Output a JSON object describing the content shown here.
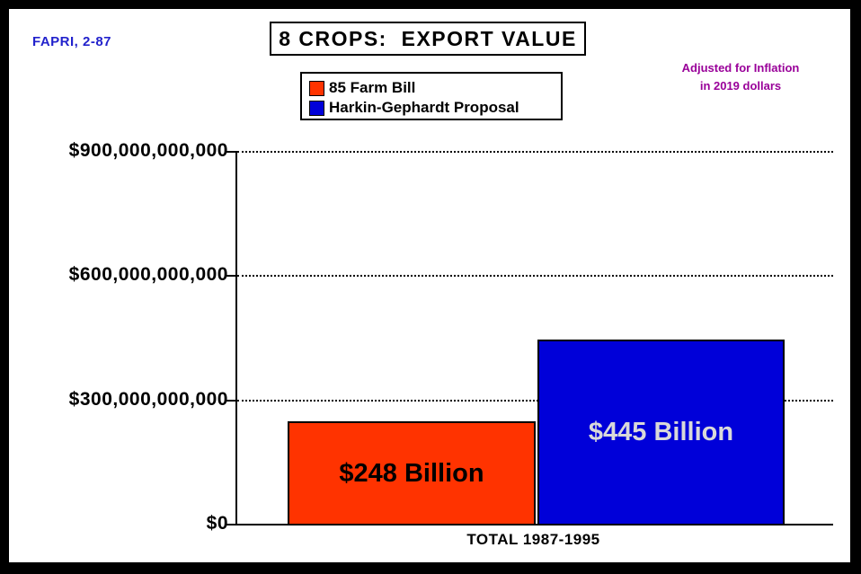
{
  "header": {
    "source_label": "FAPRI, 2-87",
    "title": "8 CROPS:  EXPORT VALUE",
    "annotation_line1": "Adjusted for Inflation",
    "annotation_line2": "in 2019 dollars"
  },
  "legend": {
    "items": [
      {
        "label": "85 Farm Bill",
        "color": "#ff3300"
      },
      {
        "label": "Harkin-Gephardt Proposal",
        "color": "#0000d9"
      }
    ]
  },
  "chart_data": {
    "type": "bar",
    "categories": [
      "TOTAL 1987-1995"
    ],
    "series": [
      {
        "name": "85 Farm Bill",
        "values": [
          248000000000
        ],
        "color": "#ff3300",
        "bar_label": "$248 Billion",
        "bar_label_color": "#000000"
      },
      {
        "name": "Harkin-Gephardt Proposal",
        "values": [
          445000000000
        ],
        "color": "#0000d9",
        "bar_label": "$445 Billion",
        "bar_label_color": "#d9d9d9"
      }
    ],
    "title": "8 CROPS:  EXPORT VALUE",
    "xlabel": "TOTAL 1987-1995",
    "ylabel": "",
    "ylim": [
      0,
      900000000000
    ],
    "yticks": [
      {
        "value": 900000000000,
        "label": "$900,000,000,000"
      },
      {
        "value": 600000000000,
        "label": "$600,000,000,000"
      },
      {
        "value": 300000000000,
        "label": "$300,000,000,000"
      },
      {
        "value": 0,
        "label": "$0"
      }
    ],
    "grid": "horizontal-dotted",
    "legend_position": "top-center"
  },
  "colors": {
    "frame": "#000000",
    "background": "#ffffff",
    "source_label": "#2222cc",
    "annotation": "#990099",
    "bar1": "#ff3300",
    "bar2": "#0000d9",
    "bar2_label": "#d9d9d9"
  }
}
